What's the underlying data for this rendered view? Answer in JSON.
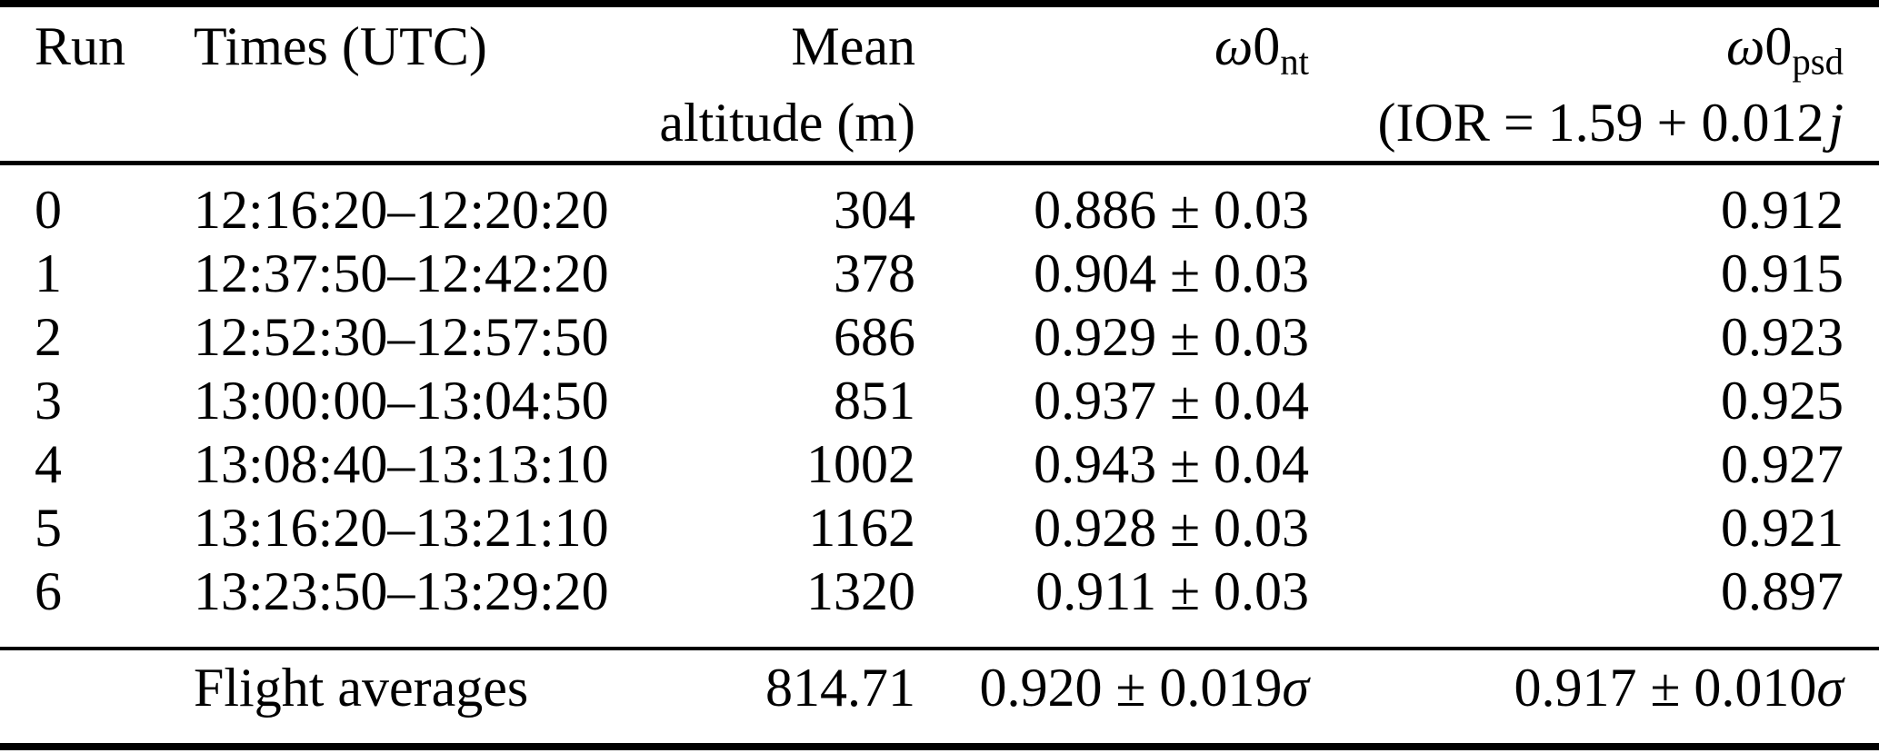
{
  "colors": {
    "background": "#ffffff",
    "text": "#000000",
    "rule": "#000000"
  },
  "table": {
    "header": {
      "run": "Run",
      "times": "Times (UTC)",
      "altitude_line1": "Mean",
      "altitude_line2": "altitude (m)",
      "omega_nt": {
        "omega": "ω",
        "zero": "0",
        "sub": "nt"
      },
      "omega_psd": {
        "omega": "ω",
        "zero": "0",
        "sub": "psd"
      },
      "ior_prefix": "(IOR = 1.59 + 0.012",
      "ior_variable": "j"
    },
    "rows": [
      {
        "run": "0",
        "times": "12:16:20–12:20:20",
        "altitude": "304",
        "omega_nt": "0.886 ± 0.03",
        "omega_psd": "0.912"
      },
      {
        "run": "1",
        "times": "12:37:50–12:42:20",
        "altitude": "378",
        "omega_nt": "0.904 ± 0.03",
        "omega_psd": "0.915"
      },
      {
        "run": "2",
        "times": "12:52:30–12:57:50",
        "altitude": "686",
        "omega_nt": "0.929 ± 0.03",
        "omega_psd": "0.923"
      },
      {
        "run": "3",
        "times": "13:00:00–13:04:50",
        "altitude": "851",
        "omega_nt": "0.937 ± 0.04",
        "omega_psd": "0.925"
      },
      {
        "run": "4",
        "times": "13:08:40–13:13:10",
        "altitude": "1002",
        "omega_nt": "0.943 ± 0.04",
        "omega_psd": "0.927"
      },
      {
        "run": "5",
        "times": "13:16:20–13:21:10",
        "altitude": "1162",
        "omega_nt": "0.928 ± 0.03",
        "omega_psd": "0.921"
      },
      {
        "run": "6",
        "times": "13:23:50–13:29:20",
        "altitude": "1320",
        "omega_nt": "0.911 ± 0.03",
        "omega_psd": "0.897"
      }
    ],
    "footer": {
      "label": "Flight averages",
      "altitude": "814.71",
      "omega_nt_value": "0.920 ± 0.019",
      "omega_nt_sigma": "σ",
      "omega_psd_value": "0.917 ± 0.010",
      "omega_psd_sigma": "σ"
    }
  }
}
